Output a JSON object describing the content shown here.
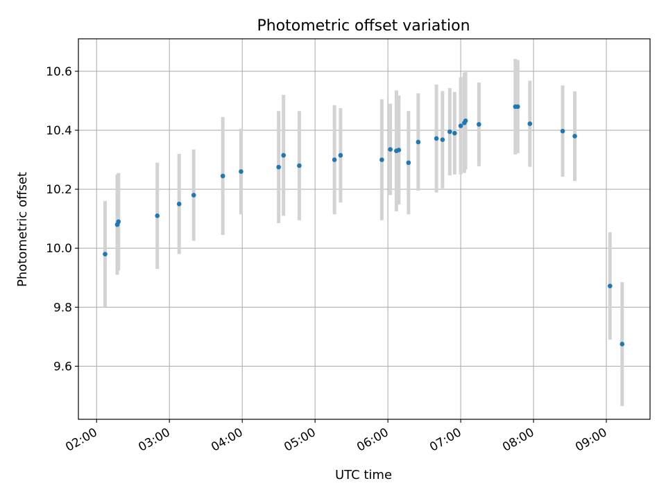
{
  "chart_data": {
    "type": "scatter",
    "title": "Photometric offset variation",
    "xlabel": "UTC time",
    "ylabel": "Photometric offset",
    "x_axis": "time",
    "xlim": [
      "01:45",
      "09:36"
    ],
    "ylim": [
      9.42,
      10.71
    ],
    "xticks": [
      "02:00",
      "03:00",
      "04:00",
      "05:00",
      "06:00",
      "07:00",
      "08:00",
      "09:00"
    ],
    "yticks": [
      9.6,
      9.8,
      10.0,
      10.2,
      10.4,
      10.6
    ],
    "grid": true,
    "point_color": "#1f77b4",
    "errorbar_color": "#d3d3d3",
    "series": [
      {
        "points": [
          {
            "t": "02:07",
            "y": 9.98,
            "err": 0.18
          },
          {
            "t": "02:17",
            "y": 10.08,
            "err": 0.17
          },
          {
            "t": "02:18",
            "y": 10.09,
            "err": 0.165
          },
          {
            "t": "02:50",
            "y": 10.11,
            "err": 0.18
          },
          {
            "t": "03:08",
            "y": 10.15,
            "err": 0.17
          },
          {
            "t": "03:20",
            "y": 10.18,
            "err": 0.155
          },
          {
            "t": "03:44",
            "y": 10.245,
            "err": 0.2
          },
          {
            "t": "03:59",
            "y": 10.26,
            "err": 0.145
          },
          {
            "t": "04:30",
            "y": 10.275,
            "err": 0.19
          },
          {
            "t": "04:34",
            "y": 10.315,
            "err": 0.205
          },
          {
            "t": "04:47",
            "y": 10.28,
            "err": 0.185
          },
          {
            "t": "05:16",
            "y": 10.3,
            "err": 0.185
          },
          {
            "t": "05:21",
            "y": 10.315,
            "err": 0.16
          },
          {
            "t": "05:55",
            "y": 10.3,
            "err": 0.205
          },
          {
            "t": "06:02",
            "y": 10.335,
            "err": 0.155
          },
          {
            "t": "06:07",
            "y": 10.33,
            "err": 0.205
          },
          {
            "t": "06:09",
            "y": 10.333,
            "err": 0.185
          },
          {
            "t": "06:17",
            "y": 10.29,
            "err": 0.175
          },
          {
            "t": "06:25",
            "y": 10.36,
            "err": 0.165
          },
          {
            "t": "06:40",
            "y": 10.372,
            "err": 0.183
          },
          {
            "t": "06:45",
            "y": 10.368,
            "err": 0.165
          },
          {
            "t": "06:51",
            "y": 10.395,
            "err": 0.148
          },
          {
            "t": "06:55",
            "y": 10.39,
            "err": 0.14
          },
          {
            "t": "07:00",
            "y": 10.415,
            "err": 0.165
          },
          {
            "t": "07:03",
            "y": 10.425,
            "err": 0.17
          },
          {
            "t": "07:04",
            "y": 10.432,
            "err": 0.165
          },
          {
            "t": "07:15",
            "y": 10.42,
            "err": 0.142
          },
          {
            "t": "07:45",
            "y": 10.48,
            "err": 0.162
          },
          {
            "t": "07:47",
            "y": 10.48,
            "err": 0.158
          },
          {
            "t": "07:57",
            "y": 10.422,
            "err": 0.146
          },
          {
            "t": "08:24",
            "y": 10.397,
            "err": 0.155
          },
          {
            "t": "08:34",
            "y": 10.38,
            "err": 0.152
          },
          {
            "t": "09:03",
            "y": 9.872,
            "err": 0.182
          },
          {
            "t": "09:13",
            "y": 9.675,
            "err": 0.21
          }
        ]
      }
    ]
  }
}
